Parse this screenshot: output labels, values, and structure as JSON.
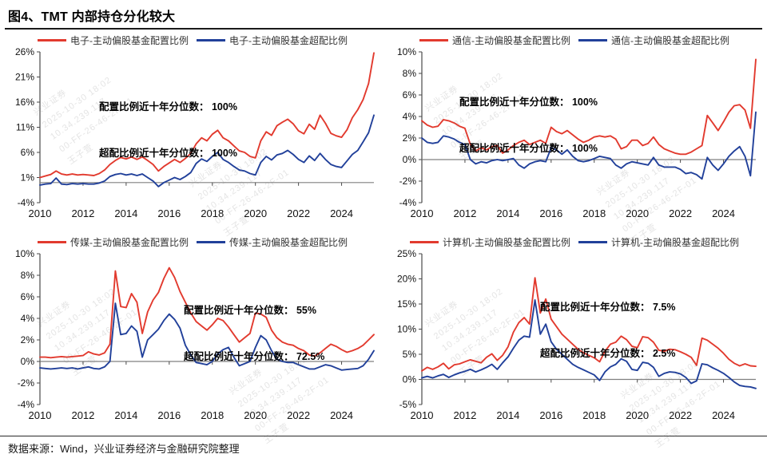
{
  "page": {
    "title": "图4、TMT 内部持仓分化较大",
    "source": "数据来源：Wind，兴业证券经济与金融研究院整理"
  },
  "colors": {
    "allocation_line": "#e23a2e",
    "overweight_line": "#21409a",
    "axis": "#4a4a4a",
    "zero_line": "#808080",
    "text": "#111111"
  },
  "watermark": {
    "lines": [
      "兴业证券",
      "2025-10-30 18:02",
      "10.34.239.117",
      "00-FF-26-46-2F-01",
      "王子萱"
    ]
  },
  "chart_data": [
    {
      "type": "line",
      "title": "电子",
      "legend": [
        "电子-主动偏股基金配置比例",
        "电子-主动偏股基金超配比例"
      ],
      "annotation_line1": "配置比例近十年分位数： 100%",
      "annotation_line2": "超配比例近十年分位数： 100%",
      "x_start": 2010,
      "x_step": 0.25,
      "xticks": [
        2010,
        2012,
        2014,
        2016,
        2018,
        2020,
        2022,
        2024
      ],
      "ylim": [
        -4,
        26
      ],
      "yticks": [
        26,
        21,
        16,
        11,
        6,
        1,
        -4
      ],
      "grid": false,
      "legend_position": "top",
      "series": [
        {
          "name": "电子-主动偏股基金配置比例",
          "color": "#e23a2e",
          "values": [
            1.0,
            1.3,
            1.6,
            2.3,
            1.7,
            1.5,
            1.7,
            1.5,
            1.6,
            1.5,
            1.4,
            1.8,
            2.5,
            3.6,
            4.4,
            5.0,
            4.7,
            5.1,
            4.6,
            5.1,
            4.4,
            3.6,
            2.3,
            3.2,
            3.9,
            4.6,
            4.0,
            4.8,
            5.8,
            7.7,
            8.9,
            8.3,
            9.6,
            10.4,
            8.9,
            8.3,
            7.3,
            6.3,
            6.0,
            5.2,
            4.9,
            8.3,
            10.1,
            9.4,
            11.3,
            12.0,
            12.6,
            11.7,
            10.3,
            9.7,
            11.6,
            10.6,
            13.4,
            11.8,
            9.8,
            9.3,
            9.0,
            10.5,
            12.9,
            14.5,
            16.5,
            19.7,
            25.8
          ]
        },
        {
          "name": "电子-主动偏股基金超配比例",
          "color": "#21409a",
          "values": [
            -0.5,
            -0.3,
            -0.2,
            0.9,
            -0.3,
            -0.4,
            -0.2,
            -0.3,
            -0.2,
            -0.3,
            -0.3,
            -0.1,
            0.3,
            1.2,
            1.6,
            1.8,
            1.5,
            1.7,
            1.4,
            1.7,
            1.0,
            0.3,
            -0.8,
            0.0,
            0.5,
            1.0,
            0.6,
            1.2,
            2.0,
            3.8,
            4.7,
            4.2,
            5.2,
            6.0,
            4.6,
            4.0,
            3.2,
            2.5,
            2.3,
            1.8,
            1.5,
            4.0,
            5.2,
            4.5,
            5.5,
            5.8,
            6.4,
            5.6,
            4.6,
            4.0,
            5.3,
            4.4,
            5.8,
            4.6,
            3.6,
            3.2,
            3.0,
            4.3,
            5.6,
            6.4,
            8.1,
            9.9,
            13.4
          ]
        }
      ]
    },
    {
      "type": "line",
      "title": "通信",
      "legend": [
        "通信-主动偏股基金配置比例",
        "通信-主动偏股基金超配比例"
      ],
      "annotation_line1": "配置比例近十年分位数： 100%",
      "annotation_line2": "超配比例近十年分位数： 100%",
      "x_start": 2010,
      "x_step": 0.25,
      "xticks": [
        2010,
        2012,
        2014,
        2016,
        2018,
        2020,
        2022,
        2024
      ],
      "ylim": [
        -4,
        10
      ],
      "yticks": [
        10,
        8,
        6,
        4,
        2,
        0,
        -2,
        -4
      ],
      "grid": false,
      "legend_position": "top",
      "series": [
        {
          "name": "通信-主动偏股基金配置比例",
          "color": "#e23a2e",
          "values": [
            3.6,
            3.2,
            3.0,
            3.1,
            3.7,
            3.6,
            3.4,
            3.1,
            2.9,
            1.4,
            0.8,
            1.1,
            0.9,
            1.2,
            1.3,
            0.6,
            0.9,
            1.3,
            1.6,
            1.8,
            1.4,
            1.6,
            1.8,
            1.5,
            3.0,
            2.6,
            2.4,
            2.7,
            2.3,
            1.9,
            1.6,
            1.8,
            2.1,
            2.2,
            2.1,
            2.2,
            1.9,
            1.0,
            1.2,
            1.8,
            1.8,
            1.3,
            1.5,
            2.1,
            1.4,
            1.0,
            0.8,
            0.6,
            0.5,
            0.5,
            0.7,
            1.0,
            1.3,
            4.1,
            3.4,
            2.7,
            3.5,
            4.4,
            5.0,
            5.1,
            4.6,
            2.9,
            9.3
          ]
        },
        {
          "name": "通信-主动偏股基金超配比例",
          "color": "#21409a",
          "values": [
            2.0,
            1.6,
            1.5,
            1.6,
            2.2,
            2.1,
            1.9,
            1.6,
            1.4,
            0.0,
            -0.4,
            -0.2,
            -0.3,
            -0.1,
            0.0,
            -0.1,
            0.0,
            0.1,
            -0.5,
            -0.8,
            -0.4,
            -0.2,
            -0.1,
            -0.2,
            1.1,
            0.9,
            0.5,
            0.9,
            0.3,
            -0.1,
            -0.2,
            -0.1,
            0.1,
            0.3,
            0.2,
            0.1,
            -0.5,
            -0.8,
            -0.4,
            -0.2,
            -0.3,
            -0.4,
            -0.5,
            0.2,
            -0.5,
            -0.7,
            -0.7,
            -0.7,
            -0.9,
            -1.3,
            -1.2,
            -1.4,
            -1.8,
            0.2,
            -0.5,
            -1.0,
            -0.4,
            0.3,
            0.8,
            1.2,
            0.3,
            -1.5,
            4.4
          ]
        }
      ]
    },
    {
      "type": "line",
      "title": "传媒",
      "legend": [
        "传媒-主动偏股基金配置比例",
        "传媒-主动偏股基金超配比例"
      ],
      "annotation_line1": "配置比例近十年分位数： 55%",
      "annotation_line2": "超配比例近十年分位数： 72.5%",
      "x_start": 2010,
      "x_step": 0.25,
      "xticks": [
        2010,
        2012,
        2014,
        2016,
        2018,
        2020,
        2022,
        2024
      ],
      "ylim": [
        -4,
        10
      ],
      "yticks": [
        10,
        8,
        6,
        4,
        2,
        0,
        -2,
        -4
      ],
      "grid": false,
      "legend_position": "top",
      "series": [
        {
          "name": "传媒-主动偏股基金配置比例",
          "color": "#e23a2e",
          "values": [
            0.4,
            0.4,
            0.35,
            0.4,
            0.45,
            0.4,
            0.45,
            0.5,
            0.55,
            0.9,
            0.7,
            0.6,
            0.8,
            1.6,
            8.4,
            5.1,
            5.0,
            6.3,
            5.5,
            2.6,
            4.6,
            5.7,
            6.4,
            7.7,
            8.7,
            7.8,
            6.5,
            5.5,
            4.5,
            3.7,
            3.3,
            2.9,
            3.4,
            4.0,
            3.8,
            3.2,
            2.5,
            1.8,
            2.2,
            2.6,
            4.5,
            4.4,
            4.1,
            2.9,
            2.2,
            1.8,
            1.6,
            1.5,
            1.2,
            1.0,
            0.6,
            0.5,
            0.8,
            1.2,
            1.6,
            1.4,
            1.1,
            0.85,
            1.0,
            1.2,
            1.5,
            2.0,
            2.5
          ]
        },
        {
          "name": "传媒-主动偏股基金超配比例",
          "color": "#21409a",
          "values": [
            -0.6,
            -0.65,
            -0.7,
            -0.65,
            -0.6,
            -0.65,
            -0.6,
            -0.7,
            -0.6,
            -0.5,
            -0.65,
            -0.7,
            -0.5,
            0.0,
            5.4,
            2.5,
            2.6,
            3.3,
            2.8,
            0.4,
            2.0,
            2.5,
            3.0,
            3.8,
            4.4,
            3.9,
            3.1,
            1.5,
            0.6,
            -0.1,
            -0.2,
            -0.3,
            0.0,
            0.7,
            1.1,
            1.3,
            0.4,
            -0.4,
            -0.2,
            0.0,
            1.3,
            2.4,
            2.0,
            1.0,
            0.2,
            0.0,
            -0.1,
            -0.1,
            -0.3,
            -0.5,
            -0.7,
            -0.7,
            -0.5,
            -0.3,
            -0.4,
            -0.6,
            -0.8,
            -0.75,
            -0.7,
            -0.65,
            -0.4,
            0.2,
            1.0
          ]
        }
      ]
    },
    {
      "type": "line",
      "title": "计算机",
      "legend": [
        "计算机-主动偏股基金配置比例",
        "计算机-主动偏股基金超配比例"
      ],
      "annotation_line1": "配置比例近十年分位数： 7.5%",
      "annotation_line2": "超配比例近十年分位数： 2.5%",
      "x_start": 2010,
      "x_step": 0.25,
      "xticks": [
        2010,
        2012,
        2014,
        2016,
        2018,
        2020,
        2022,
        2024
      ],
      "ylim": [
        -5,
        25
      ],
      "yticks": [
        25,
        20,
        15,
        10,
        5,
        0,
        -5
      ],
      "grid": false,
      "legend_position": "top",
      "series": [
        {
          "name": "计算机-主动偏股基金配置比例",
          "color": "#e23a2e",
          "values": [
            1.7,
            2.4,
            2.0,
            2.5,
            3.2,
            2.1,
            2.9,
            3.1,
            3.5,
            3.9,
            3.6,
            3.3,
            4.4,
            5.1,
            3.8,
            4.8,
            6.5,
            9.4,
            11.3,
            12.3,
            11.0,
            20.2,
            13.2,
            16.0,
            12.0,
            10.5,
            9.0,
            8.0,
            7.0,
            6.0,
            5.3,
            4.8,
            4.3,
            3.5,
            5.6,
            7.0,
            7.4,
            8.6,
            7.9,
            6.6,
            6.3,
            8.5,
            8.3,
            7.4,
            5.8,
            5.6,
            6.0,
            5.9,
            5.5,
            5.0,
            4.4,
            2.8,
            8.2,
            7.8,
            7.0,
            6.2,
            5.2,
            4.0,
            3.2,
            2.7,
            3.1,
            2.7,
            2.6
          ]
        },
        {
          "name": "计算机-主动偏股基金超配比例",
          "color": "#21409a",
          "values": [
            0.3,
            0.6,
            0.3,
            0.7,
            1.0,
            0.4,
            0.9,
            1.3,
            1.6,
            2.0,
            1.5,
            1.9,
            2.4,
            3.0,
            2.0,
            3.3,
            4.5,
            6.2,
            7.8,
            8.6,
            8.4,
            15.8,
            9.0,
            11.0,
            7.5,
            6.0,
            5.0,
            4.0,
            3.0,
            2.4,
            1.9,
            1.4,
            0.9,
            -0.2,
            1.5,
            2.5,
            3.0,
            4.1,
            3.6,
            2.0,
            1.8,
            3.4,
            3.2,
            2.4,
            0.6,
            1.2,
            1.5,
            1.4,
            1.1,
            0.4,
            -0.8,
            -0.3,
            3.1,
            2.9,
            2.3,
            1.8,
            1.2,
            0.4,
            -0.5,
            -1.2,
            -1.4,
            -1.5,
            -1.8
          ]
        }
      ]
    }
  ]
}
